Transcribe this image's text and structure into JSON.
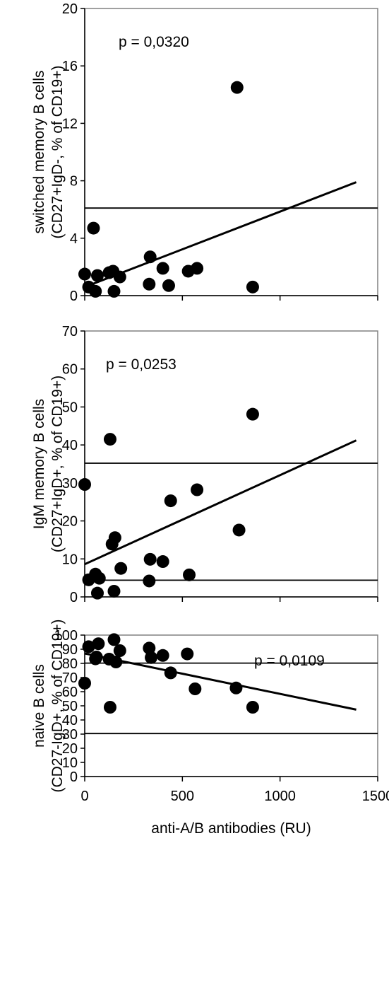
{
  "chart_data": [
    {
      "type": "scatter",
      "ylabel_lines": [
        "switched memory B cells",
        "(CD27+IgD-, % of CD19+)"
      ],
      "xlabel": "",
      "xlim": [
        0,
        1500
      ],
      "ylim": [
        0,
        20
      ],
      "yticks": [
        0,
        4,
        8,
        12,
        16,
        20
      ],
      "xticks": [
        0,
        500,
        1000,
        1500
      ],
      "show_xtick_labels": false,
      "annotation": "p = 0,0320",
      "hlines": [
        6.1
      ],
      "trendline": [
        [
          0,
          0.6
        ],
        [
          1390,
          7.9
        ]
      ],
      "points": [
        {
          "x": 0,
          "y": 1.5
        },
        {
          "x": 20,
          "y": 0.6
        },
        {
          "x": 45,
          "y": 4.7
        },
        {
          "x": 55,
          "y": 0.3
        },
        {
          "x": 65,
          "y": 1.4
        },
        {
          "x": 125,
          "y": 1.6
        },
        {
          "x": 145,
          "y": 1.7
        },
        {
          "x": 150,
          "y": 0.3
        },
        {
          "x": 180,
          "y": 1.3
        },
        {
          "x": 330,
          "y": 0.8
        },
        {
          "x": 335,
          "y": 2.7
        },
        {
          "x": 400,
          "y": 1.9
        },
        {
          "x": 430,
          "y": 0.7
        },
        {
          "x": 530,
          "y": 1.7
        },
        {
          "x": 575,
          "y": 1.9
        },
        {
          "x": 780,
          "y": 14.5
        },
        {
          "x": 860,
          "y": 0.6
        }
      ]
    },
    {
      "type": "scatter",
      "ylabel_lines": [
        "IgM memory B cells",
        "(CD27+IgD+, % of CD19+)"
      ],
      "xlabel": "",
      "xlim": [
        0,
        1500
      ],
      "ylim": [
        0,
        70
      ],
      "yticks": [
        0,
        10,
        20,
        30,
        40,
        50,
        60,
        70
      ],
      "xticks": [
        0,
        500,
        1000,
        1500
      ],
      "show_xtick_labels": false,
      "annotation": "p = 0,0253",
      "hlines": [
        35.2,
        4.4
      ],
      "trendline": [
        [
          0,
          8.6
        ],
        [
          1390,
          41.2
        ]
      ],
      "points": [
        {
          "x": 0,
          "y": 29.6
        },
        {
          "x": 20,
          "y": 4.5
        },
        {
          "x": 55,
          "y": 6.0
        },
        {
          "x": 65,
          "y": 1.0
        },
        {
          "x": 75,
          "y": 4.9
        },
        {
          "x": 130,
          "y": 41.5
        },
        {
          "x": 140,
          "y": 13.9
        },
        {
          "x": 150,
          "y": 1.5
        },
        {
          "x": 155,
          "y": 15.6
        },
        {
          "x": 185,
          "y": 7.5
        },
        {
          "x": 330,
          "y": 4.2
        },
        {
          "x": 335,
          "y": 9.9
        },
        {
          "x": 400,
          "y": 9.3
        },
        {
          "x": 440,
          "y": 25.3
        },
        {
          "x": 535,
          "y": 5.8
        },
        {
          "x": 575,
          "y": 28.2
        },
        {
          "x": 790,
          "y": 17.6
        },
        {
          "x": 860,
          "y": 48.1
        }
      ]
    },
    {
      "type": "scatter",
      "ylabel_lines": [
        "naive B cells",
        "(CD27-IgD+, % of CD19+)"
      ],
      "xlabel": "anti-A/B antibodies (RU)",
      "xlim": [
        0,
        1500
      ],
      "ylim": [
        0,
        100
      ],
      "yticks": [
        0,
        10,
        20,
        30,
        40,
        50,
        60,
        70,
        80,
        90,
        100
      ],
      "xticks": [
        0,
        500,
        1000,
        1500
      ],
      "show_xtick_labels": true,
      "annotation": "p = 0,0109",
      "hlines": [
        80.2,
        30.4
      ],
      "trendline": [
        [
          0,
          87.0
        ],
        [
          1390,
          47.3
        ]
      ],
      "points": [
        {
          "x": 0,
          "y": 66.0
        },
        {
          "x": 20,
          "y": 91.8
        },
        {
          "x": 55,
          "y": 83.2
        },
        {
          "x": 60,
          "y": 84.5
        },
        {
          "x": 70,
          "y": 93.9
        },
        {
          "x": 125,
          "y": 83.0
        },
        {
          "x": 130,
          "y": 49.0
        },
        {
          "x": 150,
          "y": 96.8
        },
        {
          "x": 160,
          "y": 81.0
        },
        {
          "x": 180,
          "y": 89.0
        },
        {
          "x": 330,
          "y": 90.8
        },
        {
          "x": 340,
          "y": 84.1
        },
        {
          "x": 400,
          "y": 85.6
        },
        {
          "x": 440,
          "y": 73.3
        },
        {
          "x": 525,
          "y": 86.7
        },
        {
          "x": 565,
          "y": 62.0
        },
        {
          "x": 775,
          "y": 62.6
        },
        {
          "x": 860,
          "y": 49.0
        }
      ]
    }
  ]
}
